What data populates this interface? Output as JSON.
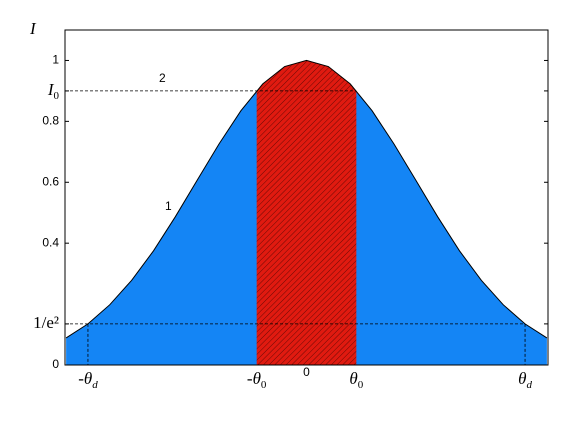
{
  "chart_data": {
    "type": "area",
    "y_label": "I",
    "annotations": [
      "1",
      "2"
    ],
    "x": [
      -1.1,
      -1.0,
      -0.9,
      -0.8,
      -0.7,
      -0.6,
      -0.5,
      -0.4,
      -0.3,
      -0.2,
      -0.1,
      0,
      0.1,
      0.2,
      0.3,
      0.4,
      0.5,
      0.6,
      0.7,
      0.8,
      0.9,
      1.0,
      1.1
    ],
    "series": [
      {
        "name": "1",
        "color": "#1485f5",
        "values": [
          0.089,
          0.135,
          0.198,
          0.278,
          0.375,
          0.487,
          0.607,
          0.726,
          0.835,
          0.923,
          0.98,
          1,
          0.98,
          0.923,
          0.835,
          0.726,
          0.607,
          0.487,
          0.375,
          0.278,
          0.198,
          0.135,
          0.089
        ]
      }
    ],
    "band_color": "#e01a10",
    "xlim": [
      -1.105,
      1.105
    ],
    "xticks": [
      {
        "value": -1,
        "label": "-θd"
      },
      {
        "value": -0.228,
        "label": "-θ0"
      },
      0,
      {
        "value": 0.228,
        "label": "θ0"
      },
      {
        "value": 1,
        "label": "θd"
      }
    ],
    "ylim": [
      0,
      1.1
    ],
    "yticks": [
      0,
      {
        "value": 0.135,
        "label": "1/e²"
      },
      0.4,
      0.6,
      0.8,
      {
        "value": 0.9,
        "label": "I0"
      },
      1
    ]
  }
}
